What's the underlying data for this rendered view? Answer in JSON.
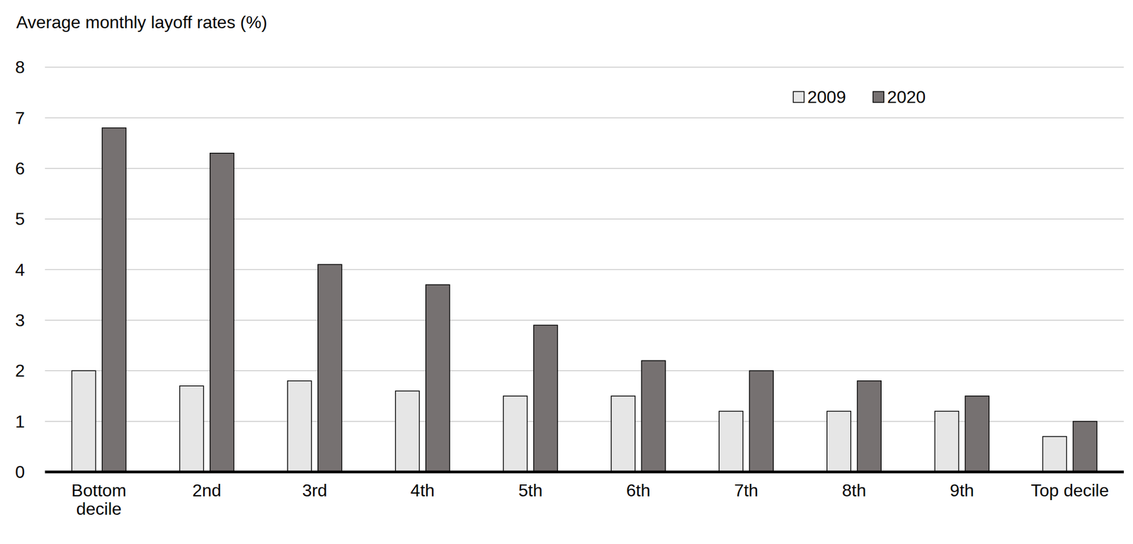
{
  "chart_data": {
    "type": "bar",
    "y_label": "Average monthly layoff rates (%)",
    "categories": [
      "Bottom decile",
      "2nd",
      "3rd",
      "4th",
      "5th",
      "6th",
      "7th",
      "8th",
      "9th",
      "Top decile"
    ],
    "series": [
      {
        "name": "2009",
        "color": "#e6e6e6",
        "values": [
          2.0,
          1.7,
          1.8,
          1.6,
          1.5,
          1.5,
          1.2,
          1.2,
          1.2,
          0.7
        ]
      },
      {
        "name": "2020",
        "color": "#767171",
        "values": [
          6.8,
          6.3,
          4.1,
          3.7,
          2.9,
          2.2,
          2.0,
          1.8,
          1.5,
          1.0
        ]
      }
    ],
    "ylim": [
      0,
      8
    ],
    "yticks": [
      0,
      1,
      2,
      3,
      4,
      5,
      6,
      7,
      8
    ],
    "grid": true,
    "legend": "top-right"
  }
}
